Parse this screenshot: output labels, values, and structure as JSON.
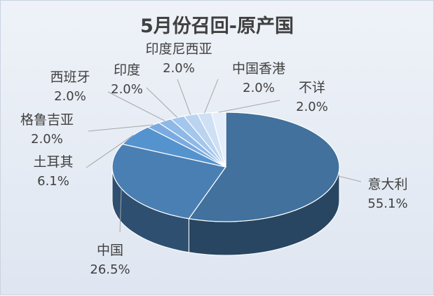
{
  "chart_data": {
    "type": "pie",
    "title": "5月份召回-原产国",
    "slices": [
      {
        "name": "意大利",
        "value": 55.1,
        "label": "55.1%"
      },
      {
        "name": "中国",
        "value": 26.5,
        "label": "26.5%"
      },
      {
        "name": "土耳其",
        "value": 6.1,
        "label": "6.1%"
      },
      {
        "name": "格鲁吉亚",
        "value": 2.0,
        "label": "2.0%"
      },
      {
        "name": "西班牙",
        "value": 2.0,
        "label": "2.0%"
      },
      {
        "name": "印度",
        "value": 2.0,
        "label": "2.0%"
      },
      {
        "name": "印度尼西亚",
        "value": 2.0,
        "label": "2.0%"
      },
      {
        "name": "中国香港",
        "value": 2.0,
        "label": "2.0%"
      },
      {
        "name": "不详",
        "value": 2.0,
        "label": "2.0%"
      }
    ],
    "colors": [
      "#41719c",
      "#4a7fb4",
      "#5593cf",
      "#7aaae0",
      "#8eb9e7",
      "#a4c6ec",
      "#bad4f0",
      "#cfe0f5",
      "#e4eefa"
    ],
    "legend": "none",
    "label_style": "category and percentage with leader lines"
  }
}
